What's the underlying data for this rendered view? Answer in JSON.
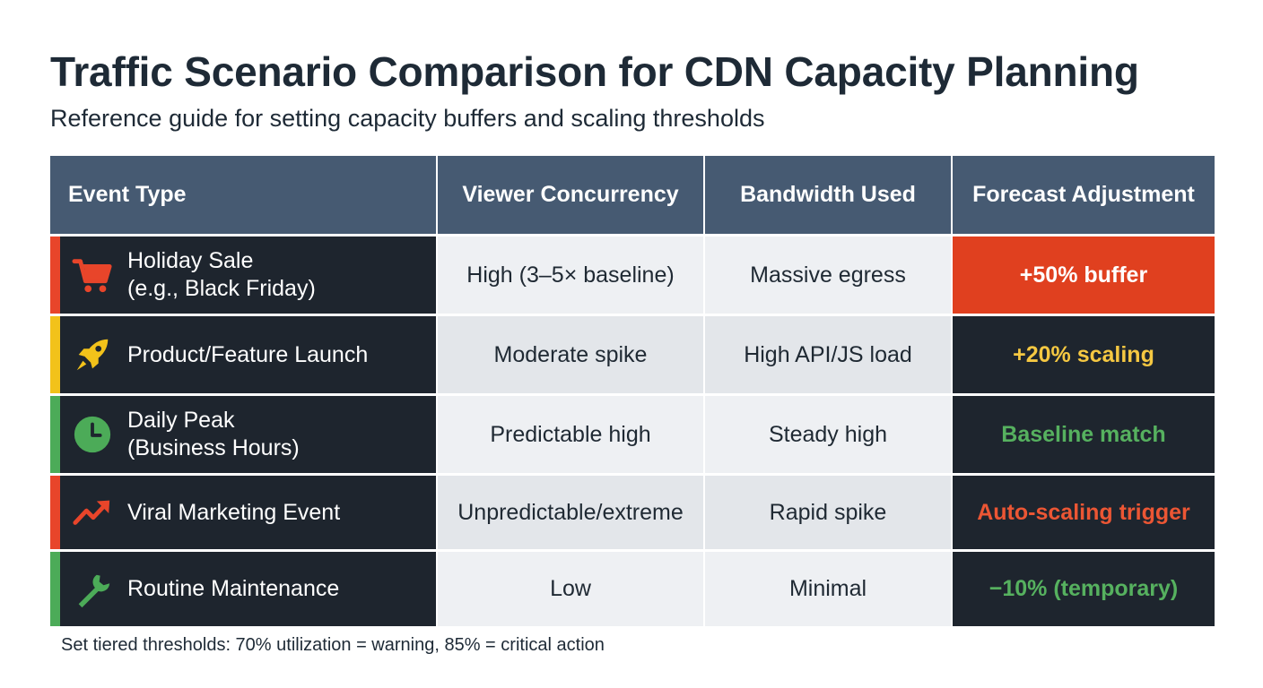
{
  "title": "Traffic Scenario Comparison for CDN Capacity Planning",
  "subtitle": "Reference guide for setting capacity buffers and scaling thresholds",
  "table": {
    "headers": [
      "Event Type",
      "Viewer Concurrency",
      "Bandwidth Used",
      "Forecast Adjustment"
    ],
    "rows": [
      {
        "event": "Holiday Sale\n(e.g., Black Friday)",
        "icon": "shopping-cart-icon",
        "accent": "#e8452a",
        "concurrency": "High (3–5× baseline)",
        "bandwidth": "Massive egress",
        "adjustment": "+50% buffer",
        "adjustment_color": "#ffffff",
        "adjustment_bg": "#e0401f"
      },
      {
        "event": "Product/Feature Launch",
        "icon": "rocket-icon",
        "accent": "#f2c21a",
        "concurrency": "Moderate spike",
        "bandwidth": "High API/JS load",
        "adjustment": "+20% scaling",
        "adjustment_color": "#f5c842",
        "adjustment_bg": "#1e252e"
      },
      {
        "event": "Daily Peak\n(Business Hours)",
        "icon": "clock-icon",
        "accent": "#4cab58",
        "concurrency": "Predictable high",
        "bandwidth": "Steady high",
        "adjustment": "Baseline match",
        "adjustment_color": "#56b15f",
        "adjustment_bg": "#1e252e"
      },
      {
        "event": "Viral Marketing Event",
        "icon": "trending-up-icon",
        "accent": "#e8452a",
        "concurrency": "Unpredictable/extreme",
        "bandwidth": "Rapid spike",
        "adjustment": "Auto-scaling trigger",
        "adjustment_color": "#ec5634",
        "adjustment_bg": "#1e252e"
      },
      {
        "event": "Routine Maintenance",
        "icon": "wrench-icon",
        "accent": "#4cab58",
        "concurrency": "Low",
        "bandwidth": "Minimal",
        "adjustment": "−10% (temporary)",
        "adjustment_color": "#56b15f",
        "adjustment_bg": "#1e252e"
      }
    ]
  },
  "footnote": "Set tiered thresholds: 70% utilization = warning, 85% = critical action"
}
